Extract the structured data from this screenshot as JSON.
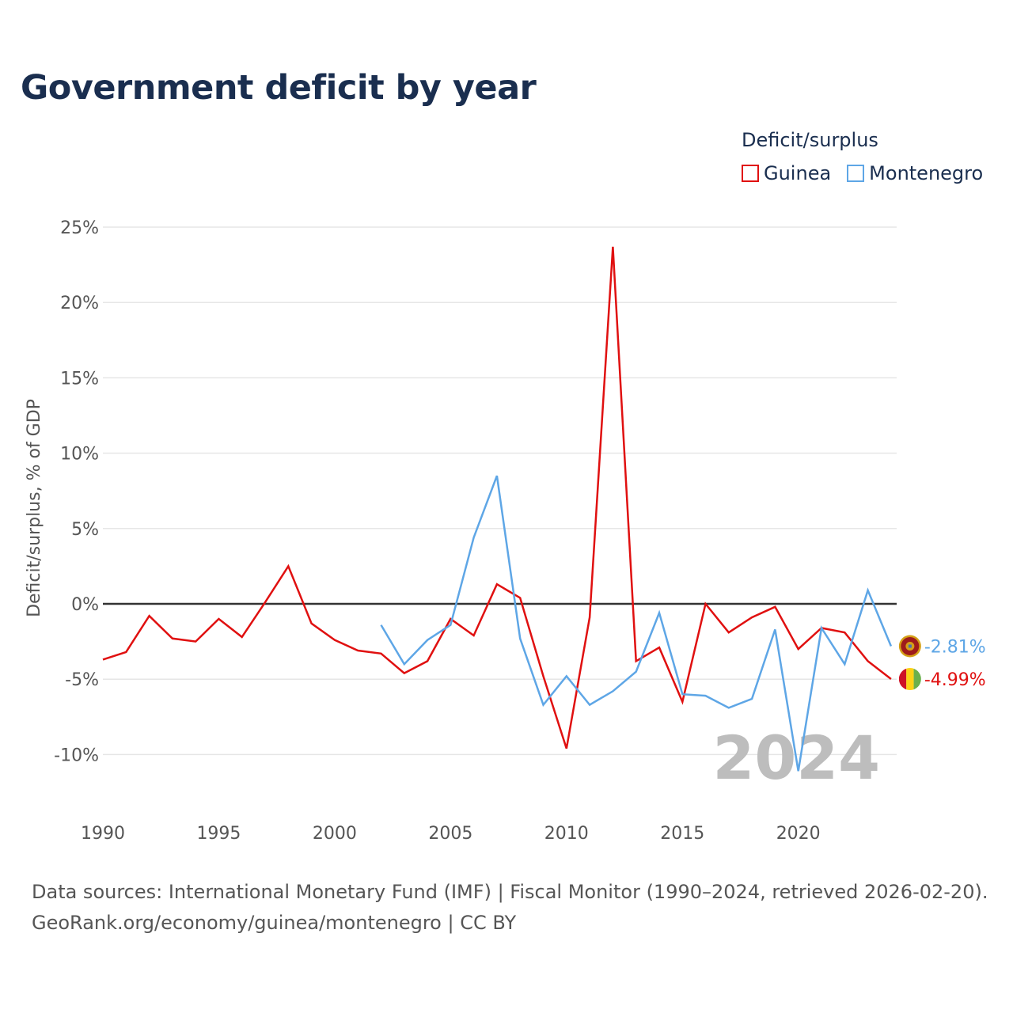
{
  "title": "Government deficit by year",
  "legend": {
    "title": "Deficit/surplus",
    "items": [
      {
        "label": "Guinea",
        "color": "#e01010"
      },
      {
        "label": "Montenegro",
        "color": "#5ea6e6"
      }
    ]
  },
  "footer": {
    "line1": "Data sources: International Monetary Fund (IMF) | Fiscal Monitor (1990–2024, retrieved 2026-02-20).",
    "line2": "GeoRank.org/economy/guinea/montenegro | CC BY"
  },
  "chart_data": {
    "type": "line",
    "title": "Government deficit by year",
    "xlabel": "",
    "ylabel": "Deficit/surplus, % of GDP",
    "xlim": [
      1990,
      2024
    ],
    "ylim": [
      -13,
      26
    ],
    "xticks": [
      1990,
      1995,
      2000,
      2005,
      2010,
      2015,
      2020
    ],
    "xtick_labels": [
      "1990",
      "1995",
      "2000",
      "2005",
      "2010",
      "2015",
      "2020"
    ],
    "yticks": [
      -10,
      -5,
      0,
      5,
      10,
      15,
      20,
      25
    ],
    "ytick_labels": [
      "-10%",
      "-5%",
      "0%",
      "5%",
      "10%",
      "15%",
      "20%",
      "25%"
    ],
    "grid": true,
    "legend_position": "top-right",
    "watermark": "2024",
    "series": [
      {
        "name": "Guinea",
        "color": "#e01010",
        "end_label": "-4.99%",
        "x": [
          1990,
          1991,
          1992,
          1993,
          1994,
          1995,
          1996,
          1997,
          1998,
          1999,
          2000,
          2001,
          2002,
          2003,
          2004,
          2005,
          2006,
          2007,
          2008,
          2009,
          2010,
          2011,
          2012,
          2013,
          2014,
          2015,
          2016,
          2017,
          2018,
          2019,
          2020,
          2021,
          2022,
          2023,
          2024
        ],
        "values": [
          -3.7,
          -3.2,
          -0.8,
          -2.3,
          -2.5,
          -1.0,
          -2.2,
          0.1,
          2.5,
          -1.3,
          -2.4,
          -3.1,
          -3.3,
          -4.6,
          -3.8,
          -1.0,
          -2.1,
          1.3,
          0.4,
          -4.8,
          -9.6,
          -0.9,
          23.7,
          -3.8,
          -2.9,
          -6.5,
          0.0,
          -1.9,
          -0.9,
          -0.2,
          -3.0,
          -1.6,
          -1.9,
          -3.8,
          -4.99
        ]
      },
      {
        "name": "Montenegro",
        "color": "#5ea6e6",
        "end_label": "-2.81%",
        "x": [
          2002,
          2003,
          2004,
          2005,
          2006,
          2007,
          2008,
          2009,
          2010,
          2011,
          2012,
          2013,
          2014,
          2015,
          2016,
          2017,
          2018,
          2019,
          2020,
          2021,
          2022,
          2023,
          2024
        ],
        "values": [
          -1.4,
          -4.0,
          -2.4,
          -1.4,
          4.4,
          8.5,
          -2.3,
          -6.7,
          -4.8,
          -6.7,
          -5.8,
          -4.5,
          -0.6,
          -6.0,
          -6.1,
          -6.9,
          -6.3,
          -1.7,
          -11.1,
          -1.6,
          -4.0,
          0.9,
          -2.81
        ]
      }
    ]
  }
}
